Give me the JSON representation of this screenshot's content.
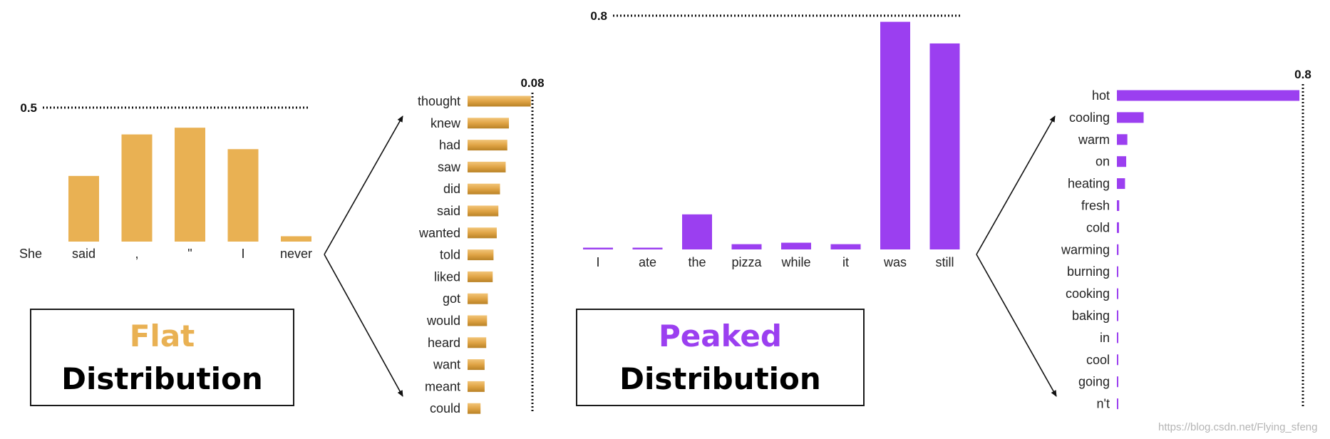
{
  "colors": {
    "flat": "#e9b153",
    "flat_dark": "#c8902e",
    "peaked": "#9b3ff0",
    "ink": "#111111"
  },
  "captions": {
    "flat": {
      "top": "Flat",
      "bottom": "Distribution"
    },
    "peaked": {
      "top": "Peaked",
      "bottom": "Distribution"
    }
  },
  "watermark": "https://blog.csdn.net/Flying_sfeng",
  "chart_data": [
    {
      "id": "flat-context",
      "type": "bar",
      "title": "",
      "reference_line": {
        "value": 0.5,
        "label": "0.5"
      },
      "ylim": [
        0,
        0.5
      ],
      "categories": [
        "She",
        "said",
        ",",
        "\"",
        "I",
        "never"
      ],
      "values": [
        null,
        0.245,
        0.4,
        0.425,
        0.345,
        0.02
      ]
    },
    {
      "id": "flat-next-word",
      "type": "bar",
      "orientation": "horizontal",
      "reference_line": {
        "value": 0.08,
        "label": "0.08"
      },
      "xlim": [
        0,
        0.08
      ],
      "categories": [
        "thought",
        "knew",
        "had",
        "saw",
        "did",
        "said",
        "wanted",
        "told",
        "liked",
        "got",
        "would",
        "heard",
        "want",
        "meant",
        "could"
      ],
      "values": [
        0.078,
        0.051,
        0.049,
        0.047,
        0.04,
        0.038,
        0.036,
        0.032,
        0.031,
        0.025,
        0.024,
        0.023,
        0.021,
        0.021,
        0.016
      ]
    },
    {
      "id": "peaked-context",
      "type": "bar",
      "reference_line": {
        "value": 0.8,
        "label": "0.8"
      },
      "ylim": [
        0,
        0.8
      ],
      "categories": [
        "I",
        "ate",
        "the",
        "pizza",
        "while",
        "it",
        "was",
        "still"
      ],
      "values": [
        0.006,
        0.006,
        0.12,
        0.018,
        0.023,
        0.018,
        0.779,
        0.705
      ]
    },
    {
      "id": "peaked-next-word",
      "type": "bar",
      "orientation": "horizontal",
      "reference_line": {
        "value": 0.8,
        "label": "0.8"
      },
      "xlim": [
        0,
        0.8
      ],
      "categories": [
        "hot",
        "cooling",
        "warm",
        "on",
        "heating",
        "fresh",
        "cold",
        "warming",
        "burning",
        "cooking",
        "baking",
        "in",
        "cool",
        "going",
        "n't"
      ],
      "values": [
        0.785,
        0.115,
        0.045,
        0.04,
        0.035,
        0.01,
        0.009,
        0.007,
        0.006,
        0.006,
        0.006,
        0.005,
        0.005,
        0.005,
        0.005
      ]
    }
  ]
}
